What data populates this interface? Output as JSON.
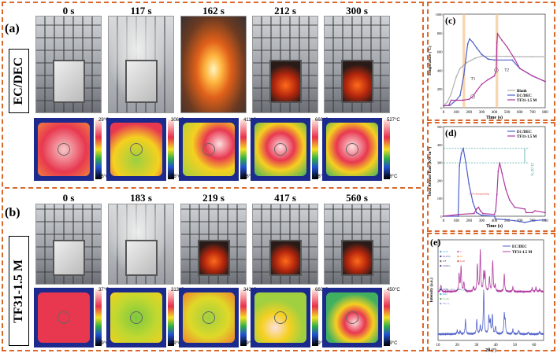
{
  "panel_a": {
    "label": "(a)",
    "side_label": "EC/DEC",
    "times": [
      "0 s",
      "117 s",
      "162 s",
      "212 s",
      "300 s"
    ],
    "colorbars": [
      {
        "max": "29°C",
        "min": "18°C"
      },
      {
        "max": "306°C",
        "min": "18°C"
      },
      {
        "max": "411°C",
        "min": "18°C"
      },
      {
        "max": "668°C",
        "min": "18°C"
      },
      {
        "max": "527°C",
        "min": "18°C"
      }
    ]
  },
  "panel_b": {
    "label": "(b)",
    "side_label": "TF31-1.5 M",
    "times": [
      "0 s",
      "183 s",
      "219 s",
      "417 s",
      "560 s"
    ],
    "colorbars": [
      {
        "max": "37°C",
        "min": "29°C"
      },
      {
        "max": "313°C",
        "min": "29°C"
      },
      {
        "max": "343°C",
        "min": "29°C"
      },
      {
        "max": "660°C",
        "min": "29°C"
      },
      {
        "max": "450°C",
        "min": "29°C"
      }
    ]
  },
  "chart_data": [
    {
      "id": "c",
      "panel_label": "(c)",
      "type": "line",
      "xlabel": "Time (s)",
      "ylabel": "Temperature (°C)",
      "xlim": [
        0,
        800
      ],
      "ylim": [
        0,
        1000
      ],
      "xticks": [
        0,
        100,
        200,
        300,
        400,
        500,
        600,
        700,
        800
      ],
      "yticks": [
        0,
        200,
        400,
        600,
        800,
        1000
      ],
      "shaded_bands": [
        [
          150,
          170
        ],
        [
          410,
          430
        ]
      ],
      "annotations": [
        "T1",
        "T2"
      ],
      "series": [
        {
          "name": "Blank",
          "color": "#b0b0b0",
          "x": [
            0,
            30,
            60,
            100,
            130,
            180,
            250,
            300,
            400,
            500,
            600,
            700,
            800
          ],
          "y": [
            20,
            60,
            150,
            330,
            420,
            480,
            530,
            550,
            550,
            550,
            545,
            545,
            545
          ]
        },
        {
          "name": "EC/DEC",
          "color": "#5060c8",
          "x": [
            0,
            50,
            100,
            130,
            160,
            190,
            205,
            230,
            260,
            300,
            350,
            400,
            540,
            600,
            700,
            800
          ],
          "y": [
            20,
            25,
            80,
            130,
            350,
            680,
            735,
            700,
            640,
            570,
            520,
            510,
            510,
            420,
            340,
            280
          ]
        },
        {
          "name": "TF31-1.5 M",
          "color": "#b03aa0",
          "x": [
            0,
            40,
            60,
            150,
            200,
            230,
            260,
            300,
            350,
            400,
            415,
            420,
            425,
            460,
            500,
            560,
            600,
            700,
            800
          ],
          "y": [
            20,
            25,
            80,
            80,
            90,
            120,
            180,
            250,
            300,
            340,
            400,
            700,
            790,
            720,
            650,
            520,
            420,
            340,
            280
          ]
        }
      ]
    },
    {
      "id": "d",
      "panel_label": "(d)",
      "type": "line",
      "xlabel": "Time (s)",
      "ylabel": "Heat Release Rate (KW·m⁻²)",
      "xlim": [
        0,
        800
      ],
      "ylim": [
        -50,
        500
      ],
      "xticks": [
        0,
        100,
        200,
        300,
        400,
        500,
        600,
        700,
        800
      ],
      "yticks": [
        0,
        100,
        200,
        300,
        400,
        500
      ],
      "reference_lines": [
        378,
        298
      ],
      "reduction_label": "21.02 %",
      "annotation": "Self-extinguishing",
      "series": [
        {
          "name": "EC/DEC",
          "color": "#5060c8",
          "x": [
            0,
            115,
            125,
            140,
            155,
            175,
            200,
            230,
            260,
            300,
            400,
            410,
            500,
            560,
            600,
            640,
            700,
            800
          ],
          "y": [
            0,
            0,
            280,
            350,
            378,
            300,
            180,
            80,
            20,
            5,
            0,
            -15,
            -20,
            -25,
            -30,
            -35,
            -25,
            -20
          ]
        },
        {
          "name": "TF31-1.5 M",
          "color": "#b03aa0",
          "x": [
            0,
            120,
            240,
            260,
            275,
            290,
            310,
            400,
            410,
            420,
            430,
            442,
            460,
            490,
            520,
            560,
            640,
            650,
            700,
            720,
            800
          ],
          "y": [
            0,
            10,
            15,
            40,
            50,
            30,
            15,
            10,
            30,
            120,
            250,
            298,
            240,
            150,
            90,
            50,
            40,
            20,
            20,
            30,
            20
          ]
        }
      ]
    },
    {
      "id": "e",
      "panel_label": "(e)",
      "type": "line",
      "xlabel": "2θ (°)",
      "ylabel": "Intensity (a.u.)",
      "xlim": [
        10,
        65
      ],
      "xticks": [
        10,
        20,
        30,
        40,
        50,
        60
      ],
      "legend_top": [
        "Li₂O",
        "C",
        "Li₂CO₃",
        "Al",
        "LiF",
        "LiAl",
        "LiAlO₂"
      ],
      "legend_bottom": [
        "Li(Ni₀.₅Co₀.₂Mn₀.₃)O₂",
        "NiO",
        "Co₃O₄",
        "Mn₂O₃"
      ],
      "series": [
        {
          "name": "EC/DEC",
          "color": "#5060c8",
          "peaks": [
            [
              20,
              12
            ],
            [
              21.5,
              10
            ],
            [
              24.3,
              45
            ],
            [
              30.2,
              45
            ],
            [
              32,
              25
            ],
            [
              33.8,
              140
            ],
            [
              36.5,
              55
            ],
            [
              37.2,
              40
            ],
            [
              38.3,
              60
            ],
            [
              40,
              25
            ],
            [
              44.5,
              60
            ],
            [
              45,
              40
            ],
            [
              49,
              15
            ],
            [
              52,
              12
            ],
            [
              57,
              6
            ],
            [
              63,
              8
            ]
          ]
        },
        {
          "name": "TF31-1.5 M",
          "color": "#b03aa0",
          "peaks": [
            [
              11.5,
              22
            ],
            [
              21,
              55
            ],
            [
              22,
              80
            ],
            [
              23.5,
              30
            ],
            [
              28.5,
              15
            ],
            [
              30.5,
              85
            ],
            [
              32,
              130
            ],
            [
              33.8,
              60
            ],
            [
              34.5,
              55
            ],
            [
              36.8,
              45
            ],
            [
              38.5,
              100
            ],
            [
              39.8,
              20
            ],
            [
              44.5,
              55
            ],
            [
              49,
              15
            ],
            [
              59,
              12
            ],
            [
              61,
              14
            ],
            [
              63,
              8
            ]
          ]
        }
      ]
    }
  ]
}
